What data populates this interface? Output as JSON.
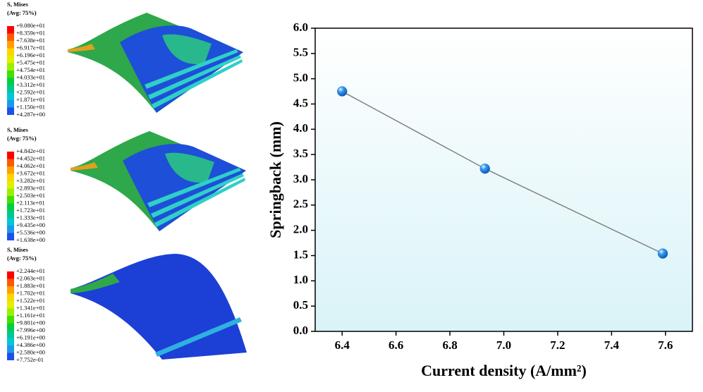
{
  "contour_plots": [
    {
      "title": "S, Mises",
      "subtitle": "(Avg: 75%)",
      "levels": [
        "+9.080e+01",
        "+8.359e+01",
        "+7.638e+01",
        "+6.917e+01",
        "+6.196e+01",
        "+5.475e+01",
        "+4.754e+01",
        "+4.033e+01",
        "+3.312e+01",
        "+2.592e+01",
        "+1.871e+01",
        "+1.150e+01",
        "+4.287e+00"
      ]
    },
    {
      "title": "S, Mises",
      "subtitle": "(Avg: 75%)",
      "levels": [
        "+4.842e+01",
        "+4.452e+01",
        "+4.062e+01",
        "+3.672e+01",
        "+3.282e+01",
        "+2.893e+01",
        "+2.503e+01",
        "+2.113e+01",
        "+1.723e+01",
        "+1.333e+01",
        "+9.435e+00",
        "+5.536e+00",
        "+1.638e+00"
      ]
    },
    {
      "title": "S, Mises",
      "subtitle": "(Avg: 75%)",
      "levels": [
        "+2.244e+01",
        "+2.063e+01",
        "+1.883e+01",
        "+1.702e+01",
        "+1.522e+01",
        "+1.341e+01",
        "+1.161e+01",
        "+9.801e+00",
        "+7.996e+00",
        "+6.191e+00",
        "+4.386e+00",
        "+2.580e+00",
        "+7.752e-01"
      ]
    }
  ],
  "chart_data": {
    "type": "line",
    "x_label": "Current density (A/mm²)",
    "y_label": "Springback (mm)",
    "x": [
      6.4,
      6.93,
      7.59
    ],
    "values": [
      4.75,
      3.22,
      1.54
    ],
    "color": "#808080",
    "marker_color": "#1f7fe0",
    "xlim": [
      6.3,
      7.7
    ],
    "ylim": [
      0,
      6
    ],
    "xticks": [
      6.4,
      6.6,
      6.8,
      {
        "value": 7,
        "label": "7.0"
      },
      7.2,
      7.4,
      7.6
    ],
    "yticks": [
      {
        "value": 0,
        "label": "0.0"
      },
      0.5,
      {
        "value": 1,
        "label": "1.0"
      },
      1.5,
      {
        "value": 2,
        "label": "2.0"
      },
      2.5,
      {
        "value": 3,
        "label": "3.0"
      },
      3.5,
      {
        "value": 4,
        "label": "4.0"
      },
      4.5,
      {
        "value": 5,
        "label": "5.0"
      },
      5.5,
      {
        "value": 6,
        "label": "6.0"
      }
    ]
  }
}
